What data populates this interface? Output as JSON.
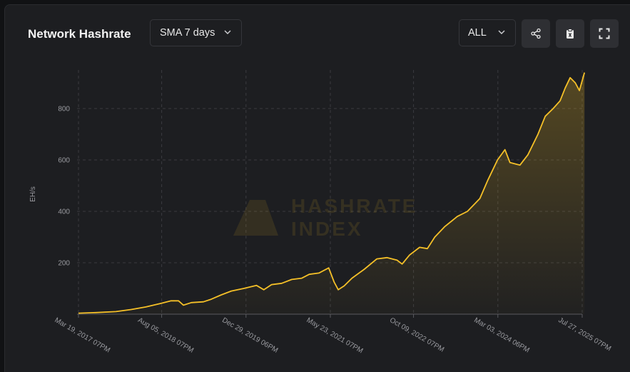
{
  "header": {
    "title": "Network Hashrate",
    "sma_label": "SMA 7 days",
    "range_label": "ALL"
  },
  "toolbar": {
    "icons": [
      "share-icon",
      "clipboard-icon",
      "fullscreen-icon"
    ]
  },
  "watermark": {
    "line1": "HASHRATE",
    "line2": "INDEX"
  },
  "colors": {
    "line": "#f5c028",
    "background": "#1d1e21",
    "grid": "#3a3b40",
    "text": "#9a9ba0"
  },
  "chart_data": {
    "type": "area",
    "ylabel": "EH/s",
    "xlabel": "",
    "ylim": [
      0,
      950
    ],
    "yticks": [
      200,
      400,
      600,
      800
    ],
    "xlim": [
      "2017-03-19",
      "2025-08-23"
    ],
    "xticks": [
      {
        "date": "2017-03-19",
        "label": "Mar 19, 2017 07PM"
      },
      {
        "date": "2018-08-05",
        "label": "Aug 05, 2018 07PM"
      },
      {
        "date": "2019-12-29",
        "label": "Dec 29, 2019 06PM"
      },
      {
        "date": "2021-05-23",
        "label": "May 23, 2021 07PM"
      },
      {
        "date": "2022-10-09",
        "label": "Oct 09, 2022 07PM"
      },
      {
        "date": "2024-03-03",
        "label": "Mar 03, 2024 06PM"
      },
      {
        "date": "2025-07-27",
        "label": "Jul 27, 2025 07PM"
      }
    ],
    "grid": true,
    "series": [
      {
        "values": [
          [
            "2017-03-19",
            4
          ],
          [
            "2017-07-01",
            6
          ],
          [
            "2017-11-01",
            10
          ],
          [
            "2018-02-01",
            18
          ],
          [
            "2018-05-01",
            28
          ],
          [
            "2018-08-01",
            42
          ],
          [
            "2018-10-01",
            52
          ],
          [
            "2018-11-15",
            52
          ],
          [
            "2018-12-15",
            35
          ],
          [
            "2019-02-01",
            45
          ],
          [
            "2019-04-15",
            48
          ],
          [
            "2019-06-01",
            58
          ],
          [
            "2019-08-01",
            75
          ],
          [
            "2019-10-01",
            90
          ],
          [
            "2019-12-15",
            100
          ],
          [
            "2020-03-01",
            112
          ],
          [
            "2020-04-15",
            95
          ],
          [
            "2020-06-01",
            115
          ],
          [
            "2020-08-01",
            120
          ],
          [
            "2020-10-01",
            135
          ],
          [
            "2020-12-01",
            140
          ],
          [
            "2021-01-15",
            155
          ],
          [
            "2021-03-15",
            160
          ],
          [
            "2021-05-13",
            180
          ],
          [
            "2021-06-15",
            125
          ],
          [
            "2021-07-10",
            95
          ],
          [
            "2021-08-15",
            110
          ],
          [
            "2021-10-01",
            140
          ],
          [
            "2021-12-15",
            175
          ],
          [
            "2022-03-01",
            215
          ],
          [
            "2022-05-01",
            220
          ],
          [
            "2022-07-01",
            210
          ],
          [
            "2022-08-01",
            195
          ],
          [
            "2022-09-15",
            230
          ],
          [
            "2022-11-15",
            260
          ],
          [
            "2023-01-01",
            255
          ],
          [
            "2023-02-15",
            300
          ],
          [
            "2023-04-15",
            340
          ],
          [
            "2023-07-01",
            380
          ],
          [
            "2023-09-01",
            400
          ],
          [
            "2023-11-15",
            450
          ],
          [
            "2024-01-01",
            520
          ],
          [
            "2024-03-01",
            600
          ],
          [
            "2024-04-15",
            640
          ],
          [
            "2024-05-15",
            590
          ],
          [
            "2024-07-15",
            580
          ],
          [
            "2024-09-01",
            620
          ],
          [
            "2024-11-01",
            700
          ],
          [
            "2024-12-15",
            770
          ],
          [
            "2025-02-01",
            800
          ],
          [
            "2025-03-15",
            830
          ],
          [
            "2025-04-15",
            880
          ],
          [
            "2025-05-15",
            920
          ],
          [
            "2025-06-15",
            900
          ],
          [
            "2025-07-10",
            870
          ],
          [
            "2025-08-10",
            940
          ]
        ]
      }
    ]
  }
}
